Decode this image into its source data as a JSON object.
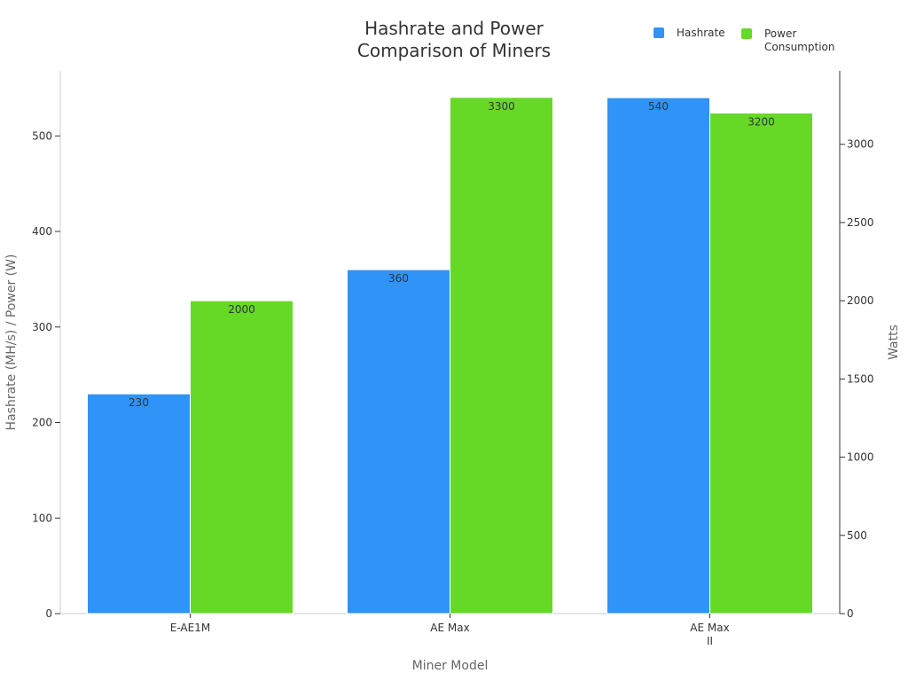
{
  "chart_data": {
    "type": "bar",
    "title": "Hashrate and Power Comparison of Miners",
    "title_lines": [
      "Hashrate and Power",
      "Comparison of Miners"
    ],
    "categories": [
      "E-AE1M",
      "AE Max",
      "AE Max II"
    ],
    "category_label_lines": [
      [
        "E-AE1M"
      ],
      [
        "AE Max"
      ],
      [
        "AE Max",
        "II"
      ]
    ],
    "xlabel": "Miner Model",
    "ylabel": "Hashrate (MH/s) / Power (W)",
    "y2label": "Watts",
    "ylim": [
      0,
      568
    ],
    "y2lim": [
      0,
      3469
    ],
    "yticks": [
      0,
      100,
      200,
      300,
      400,
      500
    ],
    "y2ticks": [
      0,
      500,
      1000,
      1500,
      2000,
      2500,
      3000
    ],
    "grid": false,
    "legend_position": "top-right",
    "series": [
      {
        "name": "Hashrate",
        "axis": "left",
        "color": "#2f93f7",
        "values": [
          230,
          360,
          540
        ]
      },
      {
        "name": "Power Consumption",
        "axis": "right",
        "color": "#66d927",
        "values": [
          2000,
          3300,
          3200
        ]
      }
    ]
  },
  "legend": {
    "items": [
      {
        "lines": [
          "Hashrate"
        ],
        "color": "#2f93f7"
      },
      {
        "lines": [
          "Power",
          "Consumption"
        ],
        "color": "#66d927"
      }
    ]
  }
}
